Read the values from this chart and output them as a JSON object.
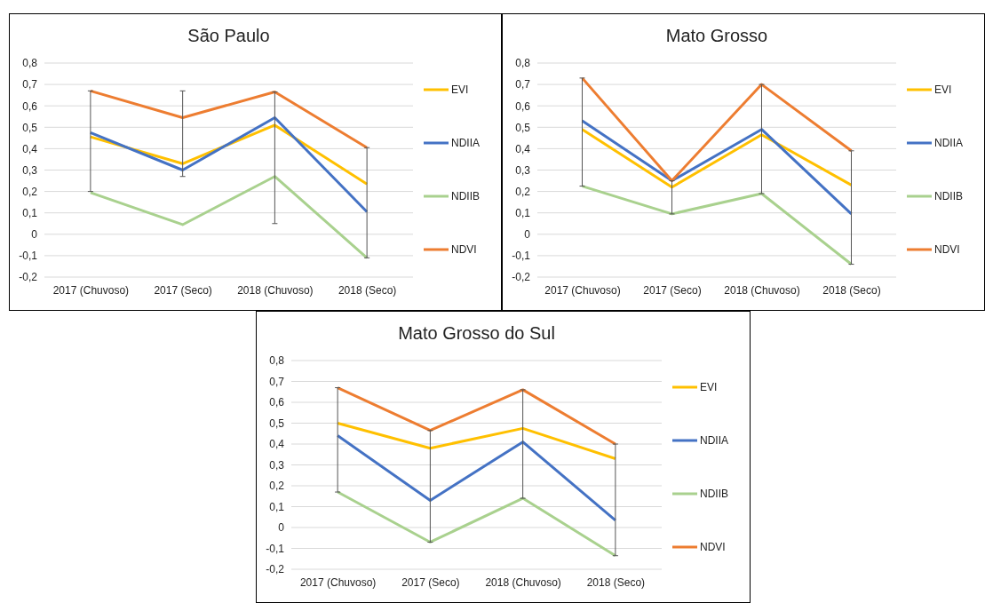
{
  "chart_data": [
    {
      "type": "line",
      "title": "São Paulo",
      "categories": [
        "2017 (Chuvoso)",
        "2017 (Seco)",
        "2018 (Chuvoso)",
        "2018 (Seco)"
      ],
      "ylim": [
        -0.2,
        0.8
      ],
      "yticks": [
        {
          "value": -0.2,
          "label": "-0,2"
        },
        {
          "value": -0.1,
          "label": "-0,1"
        },
        {
          "value": 0,
          "label": "0"
        },
        {
          "value": 0.1,
          "label": "0,1"
        },
        {
          "value": 0.2,
          "label": "0,2"
        },
        {
          "value": 0.3,
          "label": "0,3"
        },
        {
          "value": 0.4,
          "label": "0,4"
        },
        {
          "value": 0.5,
          "label": "0,5"
        },
        {
          "value": 0.6,
          "label": "0,6"
        },
        {
          "value": 0.7,
          "label": "0,7"
        },
        {
          "value": 0.8,
          "label": "0,8"
        }
      ],
      "grid": "y",
      "legend": "right",
      "marker": "none",
      "series": [
        {
          "name": "EVI",
          "color": "#ffc000",
          "values": [
            0.455,
            0.33,
            0.51,
            0.235
          ]
        },
        {
          "name": "NDIIA",
          "color": "#4472c4",
          "values": [
            0.475,
            0.3,
            0.545,
            0.105
          ]
        },
        {
          "name": "NDIIB",
          "color": "#a9d18e",
          "values": [
            0.195,
            0.045,
            0.27,
            -0.11
          ]
        },
        {
          "name": "NDVI",
          "color": "#ed7d31",
          "values": [
            0.67,
            0.545,
            0.665,
            0.405
          ],
          "errors": [
            [
              0.2,
              0.67
            ],
            [
              0.27,
              0.67
            ],
            [
              0.05,
              0.665
            ],
            [
              -0.11,
              0.405
            ]
          ]
        }
      ]
    },
    {
      "type": "line",
      "title": "Mato Grosso",
      "categories": [
        "2017 (Chuvoso)",
        "2017 (Seco)",
        "2018 (Chuvoso)",
        "2018 (Seco)"
      ],
      "ylim": [
        -0.2,
        0.8
      ],
      "yticks": [
        {
          "value": -0.2,
          "label": "-0,2"
        },
        {
          "value": -0.1,
          "label": "-0,1"
        },
        {
          "value": 0,
          "label": "0"
        },
        {
          "value": 0.1,
          "label": "0,1"
        },
        {
          "value": 0.2,
          "label": "0,2"
        },
        {
          "value": 0.3,
          "label": "0,3"
        },
        {
          "value": 0.4,
          "label": "0,4"
        },
        {
          "value": 0.5,
          "label": "0,5"
        },
        {
          "value": 0.6,
          "label": "0,6"
        },
        {
          "value": 0.7,
          "label": "0,7"
        },
        {
          "value": 0.8,
          "label": "0,8"
        }
      ],
      "grid": "y",
      "legend": "right",
      "marker": "none",
      "series": [
        {
          "name": "EVI",
          "color": "#ffc000",
          "values": [
            0.49,
            0.22,
            0.465,
            0.23
          ]
        },
        {
          "name": "NDIIA",
          "color": "#4472c4",
          "values": [
            0.53,
            0.25,
            0.49,
            0.095
          ]
        },
        {
          "name": "NDIIB",
          "color": "#a9d18e",
          "values": [
            0.225,
            0.095,
            0.19,
            -0.14
          ]
        },
        {
          "name": "NDVI",
          "color": "#ed7d31",
          "values": [
            0.73,
            0.25,
            0.7,
            0.39
          ],
          "errors": [
            [
              0.225,
              0.73
            ],
            [
              0.095,
              0.25
            ],
            [
              0.19,
              0.7
            ],
            [
              -0.14,
              0.39
            ]
          ]
        }
      ]
    },
    {
      "type": "line",
      "title": "Mato Grosso do Sul",
      "categories": [
        "2017 (Chuvoso)",
        "2017 (Seco)",
        "2018 (Chuvoso)",
        "2018 (Seco)"
      ],
      "ylim": [
        -0.2,
        0.8
      ],
      "yticks": [
        {
          "value": -0.2,
          "label": "-0,2"
        },
        {
          "value": -0.1,
          "label": "-0,1"
        },
        {
          "value": 0,
          "label": "0"
        },
        {
          "value": 0.1,
          "label": "0,1"
        },
        {
          "value": 0.2,
          "label": "0,2"
        },
        {
          "value": 0.3,
          "label": "0,3"
        },
        {
          "value": 0.4,
          "label": "0,4"
        },
        {
          "value": 0.5,
          "label": "0,5"
        },
        {
          "value": 0.6,
          "label": "0,6"
        },
        {
          "value": 0.7,
          "label": "0,7"
        },
        {
          "value": 0.8,
          "label": "0,8"
        }
      ],
      "grid": "y",
      "legend": "right",
      "marker": "none",
      "series": [
        {
          "name": "EVI",
          "color": "#ffc000",
          "values": [
            0.5,
            0.38,
            0.475,
            0.33
          ]
        },
        {
          "name": "NDIIA",
          "color": "#4472c4",
          "values": [
            0.44,
            0.13,
            0.41,
            0.035
          ]
        },
        {
          "name": "NDIIB",
          "color": "#a9d18e",
          "values": [
            0.17,
            -0.07,
            0.14,
            -0.135
          ]
        },
        {
          "name": "NDVI",
          "color": "#ed7d31",
          "values": [
            0.67,
            0.465,
            0.66,
            0.4
          ],
          "errors": [
            [
              0.17,
              0.67
            ],
            [
              -0.07,
              0.465
            ],
            [
              0.14,
              0.66
            ],
            [
              -0.135,
              0.4
            ]
          ]
        }
      ]
    }
  ]
}
